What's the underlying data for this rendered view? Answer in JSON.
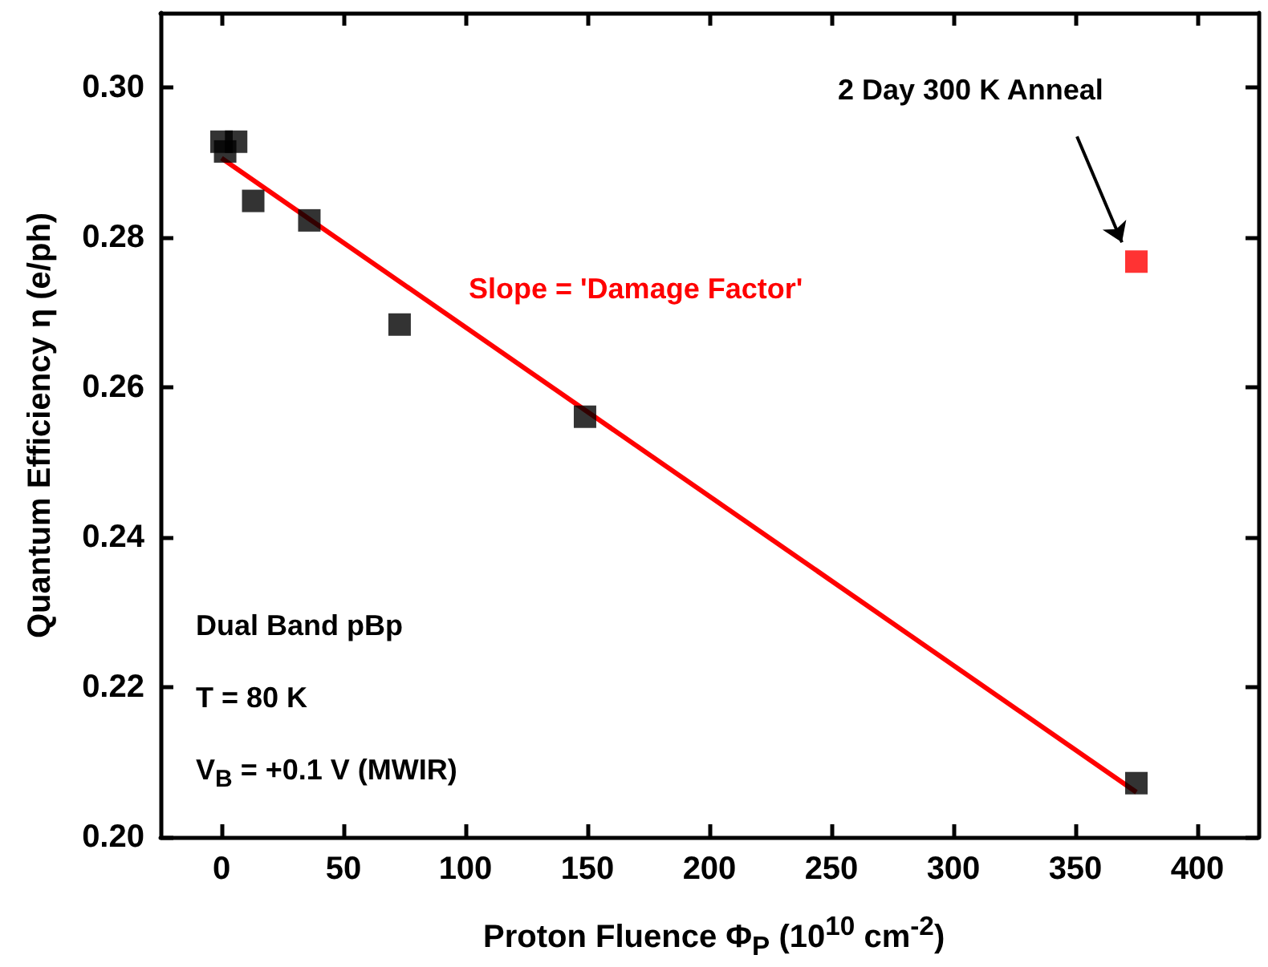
{
  "chart_data": {
    "type": "scatter",
    "xlabel": "Proton Fluence Φ$_{P}$ (10$^{10}$ cm$^{-2}$)",
    "ylabel": "Quantum Efficiency η (e/ph)",
    "xlim": [
      -25,
      425
    ],
    "xticks": [
      0,
      50,
      100,
      150,
      200,
      250,
      300,
      350,
      400
    ],
    "ylim": [
      0.2,
      0.31
    ],
    "yticks": [
      {
        "value": 0.2,
        "label": "0.20"
      },
      {
        "value": 0.22,
        "label": "0.22"
      },
      {
        "value": 0.24,
        "label": "0.24"
      },
      {
        "value": 0.26,
        "label": "0.26"
      },
      {
        "value": 0.28,
        "label": "0.28"
      },
      {
        "value": 0.3,
        "label": "0.30"
      }
    ],
    "marker": "square",
    "grid": false,
    "series": [
      {
        "color": "#000000",
        "x": [
          0,
          1.5,
          6,
          13,
          36,
          73,
          149,
          375
        ],
        "values": [
          0.2928,
          0.2915,
          0.2928,
          0.2849,
          0.2823,
          0.2684,
          0.2561,
          0.2072
        ]
      },
      {
        "color": "#ff0000",
        "x": [
          375
        ],
        "values": [
          0.2768
        ]
      },
      {
        "type": "line",
        "color": "#ff0000",
        "marker": "none",
        "x": [
          0,
          375
        ],
        "values": [
          0.2906,
          0.206
        ]
      }
    ],
    "annotations": [
      "2 Day 300 K Anneal",
      "Slope = 'Damage Factor'",
      "Dual Band pBp",
      "T = 80 K",
      "V$_{B}$ = +0.1 V (MWIR)"
    ]
  }
}
